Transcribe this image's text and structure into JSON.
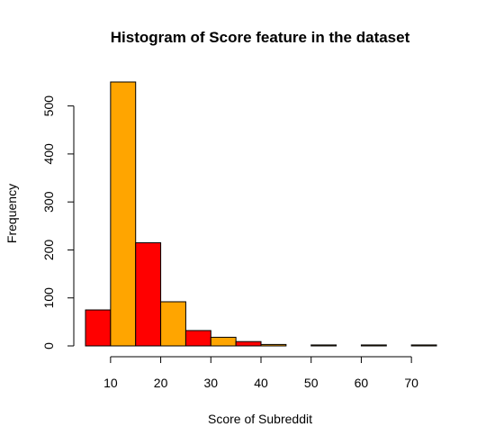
{
  "chart_data": {
    "type": "bar",
    "title": "Histogram of Score feature in the dataset",
    "xlabel": "Score of Subreddit",
    "ylabel": "Frequency",
    "bin_edges": [
      5,
      10,
      15,
      20,
      25,
      30,
      35,
      40,
      45,
      50,
      55,
      60,
      65,
      70,
      75
    ],
    "values": [
      75,
      550,
      215,
      92,
      32,
      18,
      9,
      3,
      0,
      2,
      0,
      2,
      0,
      2
    ],
    "bar_colors": [
      "#ff0000",
      "#ffa500"
    ],
    "xticks": [
      10,
      20,
      30,
      40,
      50,
      60,
      70
    ],
    "yticks": [
      0,
      100,
      200,
      300,
      400,
      500
    ],
    "xlim": [
      5,
      75
    ],
    "ylim": [
      0,
      550
    ],
    "grid": false,
    "legend": "none"
  }
}
